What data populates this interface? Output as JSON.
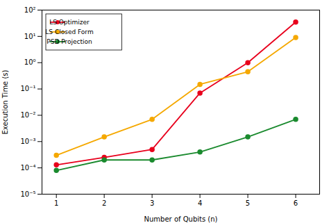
{
  "chart_data": {
    "type": "line",
    "x": [
      1,
      2,
      3,
      4,
      5,
      6
    ],
    "series": [
      {
        "name": "LS Optimizer",
        "color": "#e8001c",
        "values": [
          0.00013,
          0.00025,
          0.0005,
          0.07,
          1.0,
          35.0
        ]
      },
      {
        "name": "LS Closed Form",
        "color": "#f5a800",
        "values": [
          0.0003,
          0.0015,
          0.007,
          0.15,
          0.45,
          9.0
        ]
      },
      {
        "name": "PSD Projection",
        "color": "#1a8a2e",
        "values": [
          8e-05,
          0.0002,
          0.0002,
          0.0004,
          0.0015,
          0.007
        ]
      }
    ],
    "xlabel": "Number of Qubits (n)",
    "ylabel": "Execution Time (s)",
    "xlim": [
      0.7,
      6.5
    ],
    "ylim": [
      1e-05,
      100
    ],
    "xticks": [
      1,
      2,
      3,
      4,
      5,
      6
    ],
    "yticks": [
      {
        "value": 1e-05,
        "label": "10⁻⁵"
      },
      {
        "value": 0.0001,
        "label": "10⁻⁴"
      },
      {
        "value": 0.001,
        "label": "10⁻³"
      },
      {
        "value": 0.01,
        "label": "10⁻²"
      },
      {
        "value": 0.1,
        "label": "10⁻¹"
      },
      {
        "value": 1,
        "label": "10⁰"
      },
      {
        "value": 10,
        "label": "10¹"
      },
      {
        "value": 100,
        "label": "10²"
      }
    ],
    "log": "y",
    "grid": false,
    "legend": "upper left",
    "marker": "o"
  }
}
